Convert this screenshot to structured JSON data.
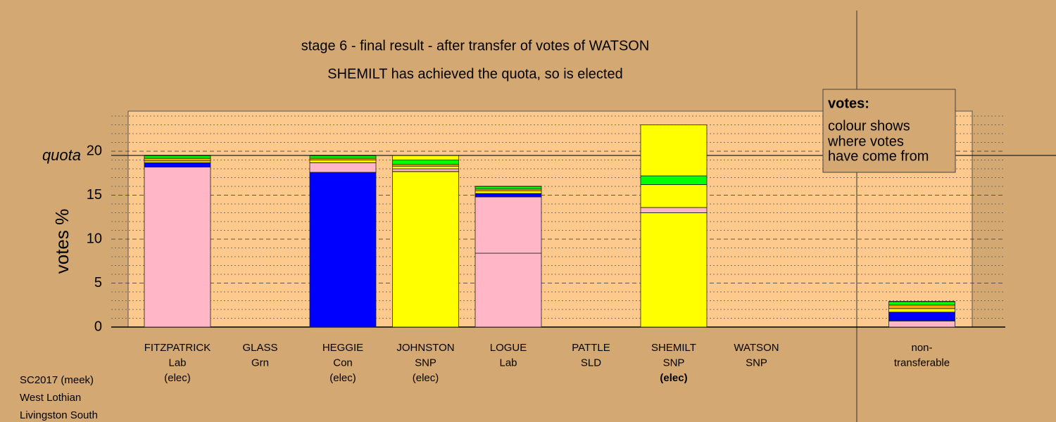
{
  "chart_data": {
    "type": "stacked-bar",
    "title": "stage 6 - final result - after transfer of votes of WATSON",
    "subtitle": "SHEMILT has achieved the quota, so is elected",
    "y_label": "votes %",
    "quota": {
      "label": "quota",
      "value": 19.52
    },
    "legend_title": "votes:",
    "legend_lines": [
      "colour shows",
      "where votes",
      "have come from"
    ],
    "footer": [
      "SC2017 (meek)",
      "West Lothian",
      "Livingston South"
    ],
    "categories": [
      [
        "FITZPATRICK",
        "Lab",
        "(elec)"
      ],
      [
        "GLASS",
        "Grn"
      ],
      [
        "HEGGIE",
        "Con",
        "(elec)"
      ],
      [
        "JOHNSTON",
        "SNP",
        "(elec)"
      ],
      [
        "LOGUE",
        "Lab"
      ],
      [
        "PATTLE",
        "SLD"
      ],
      [
        "SHEMILT",
        "SNP",
        "(elec)"
      ],
      [
        "WATSON",
        "SNP"
      ],
      null,
      [
        "non-",
        "transferable"
      ]
    ],
    "bold_label_index": 6,
    "series": [
      {
        "color": "#ffff00",
        "values": [
          0,
          0,
          0,
          17.7,
          0,
          0,
          13.0,
          0,
          null,
          0
        ]
      },
      {
        "color": "#0000ff",
        "values": [
          0,
          0,
          17.6,
          0,
          0,
          0,
          0,
          0,
          null,
          0
        ]
      },
      {
        "color": "#ffb6c6",
        "values": [
          18.2,
          0,
          0,
          0,
          8.4,
          0,
          0,
          0,
          null,
          0.7
        ]
      },
      {
        "color": "#ffb6c6",
        "values": [
          0,
          0,
          1.1,
          0.3,
          6.4,
          0,
          0.6,
          0,
          null,
          0
        ]
      },
      {
        "color": "#0000ff",
        "values": [
          0.5,
          0,
          0,
          0,
          0.4,
          0,
          0,
          0,
          null,
          1.0
        ]
      },
      {
        "color": "#ffff00",
        "values": [
          0.2,
          0,
          0.3,
          0.3,
          0.3,
          0,
          2.6,
          0,
          null,
          0.4
        ]
      },
      {
        "color": "#ffa500",
        "values": [
          0.3,
          0,
          0.2,
          0.2,
          0.2,
          0,
          0,
          0,
          null,
          0.4
        ]
      },
      {
        "color": "#00ff00",
        "values": [
          0.3,
          0,
          0.3,
          0.5,
          0.3,
          0,
          1.0,
          0,
          null,
          0.4
        ]
      },
      {
        "color": "#ffff00",
        "values": [
          0,
          0,
          0,
          0.5,
          0,
          0,
          5.8,
          0,
          null,
          0
        ]
      }
    ],
    "ylim": [
      0,
      24.56
    ],
    "yticks": [
      0,
      5,
      10,
      15,
      20
    ],
    "minor_yticks": [
      1,
      2,
      3,
      4,
      6,
      7,
      8,
      9,
      11,
      12,
      13,
      14,
      16,
      17,
      18,
      19,
      21,
      22,
      23,
      24
    ],
    "grid": true
  }
}
